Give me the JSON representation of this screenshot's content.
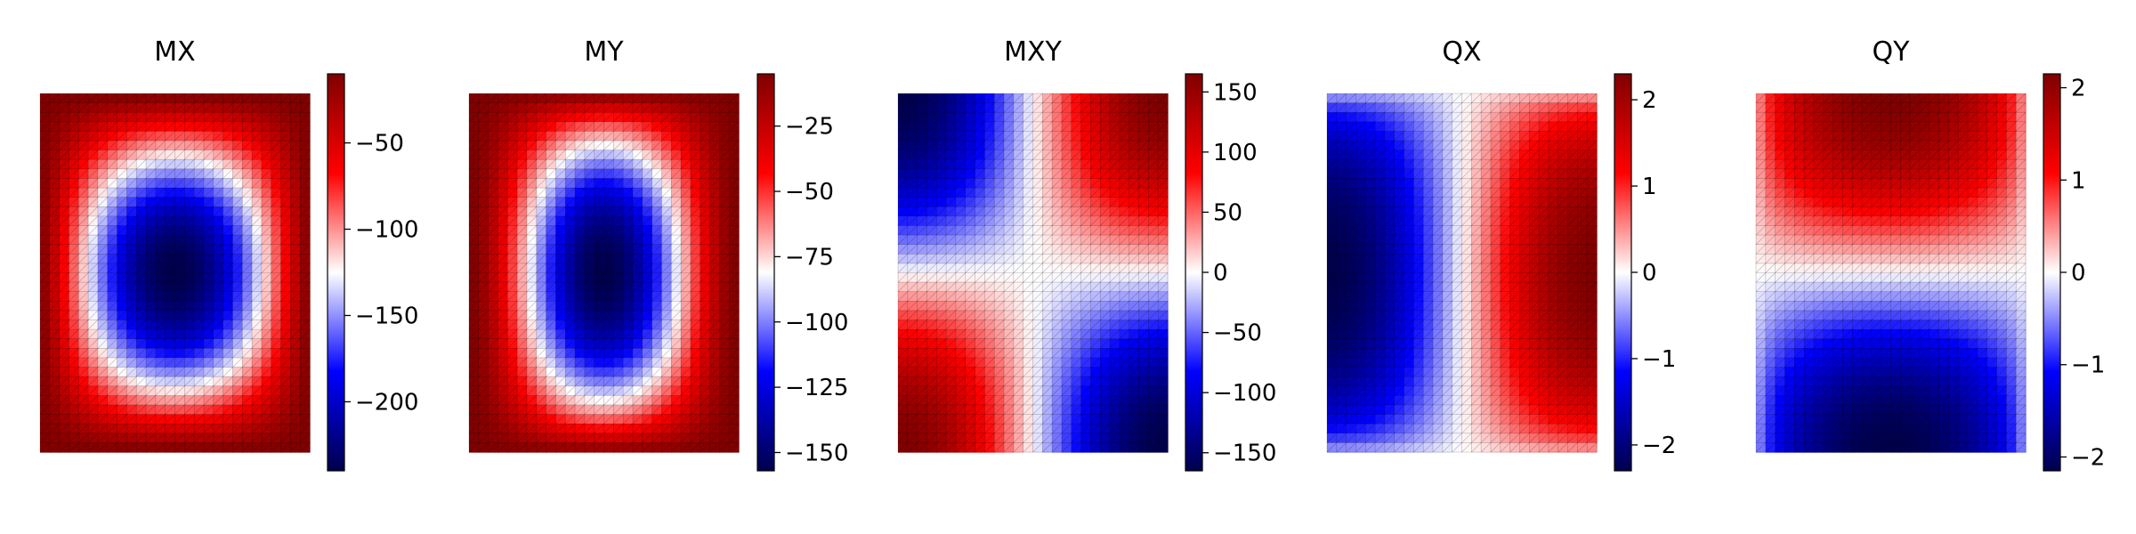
{
  "chart_data": [
    {
      "type": "heatmap",
      "title": "MX",
      "field": "MX",
      "vmin": -240,
      "vmax": -10,
      "colorbar_ticks": [
        {
          "v": -50,
          "label": "−50"
        },
        {
          "v": -100,
          "label": "−100"
        },
        {
          "v": -150,
          "label": "−150"
        },
        {
          "v": -200,
          "label": "−200"
        }
      ],
      "colormap": "seismic",
      "grid": true
    },
    {
      "type": "heatmap",
      "title": "MY",
      "field": "MY",
      "vmin": -157,
      "vmax": -5,
      "colorbar_ticks": [
        {
          "v": -25,
          "label": "−25"
        },
        {
          "v": -50,
          "label": "−50"
        },
        {
          "v": -75,
          "label": "−75"
        },
        {
          "v": -100,
          "label": "−100"
        },
        {
          "v": -125,
          "label": "−125"
        },
        {
          "v": -150,
          "label": "−150"
        }
      ],
      "colormap": "seismic",
      "grid": true
    },
    {
      "type": "heatmap",
      "title": "MXY",
      "field": "MXY",
      "vmin": -165,
      "vmax": 165,
      "colorbar_ticks": [
        {
          "v": 150,
          "label": "150"
        },
        {
          "v": 100,
          "label": "100"
        },
        {
          "v": 50,
          "label": "50"
        },
        {
          "v": 0,
          "label": "0"
        },
        {
          "v": -50,
          "label": "−50"
        },
        {
          "v": -100,
          "label": "−100"
        },
        {
          "v": -150,
          "label": "−150"
        }
      ],
      "colormap": "seismic",
      "grid": true
    },
    {
      "type": "heatmap",
      "title": "QX",
      "field": "QX",
      "vmin": -2.3,
      "vmax": 2.3,
      "colorbar_ticks": [
        {
          "v": 2,
          "label": "2"
        },
        {
          "v": 1,
          "label": "1"
        },
        {
          "v": 0,
          "label": "0"
        },
        {
          "v": -1,
          "label": "−1"
        },
        {
          "v": -2,
          "label": "−2"
        }
      ],
      "colormap": "seismic",
      "grid": true
    },
    {
      "type": "heatmap",
      "title": "QY",
      "field": "QY",
      "vmin": -2.15,
      "vmax": 2.15,
      "colorbar_ticks": [
        {
          "v": 2,
          "label": "2"
        },
        {
          "v": 1,
          "label": "1"
        },
        {
          "v": 0,
          "label": "0"
        },
        {
          "v": -1,
          "label": "−1"
        },
        {
          "v": -2,
          "label": "−2"
        }
      ],
      "colormap": "seismic",
      "grid": true
    }
  ]
}
